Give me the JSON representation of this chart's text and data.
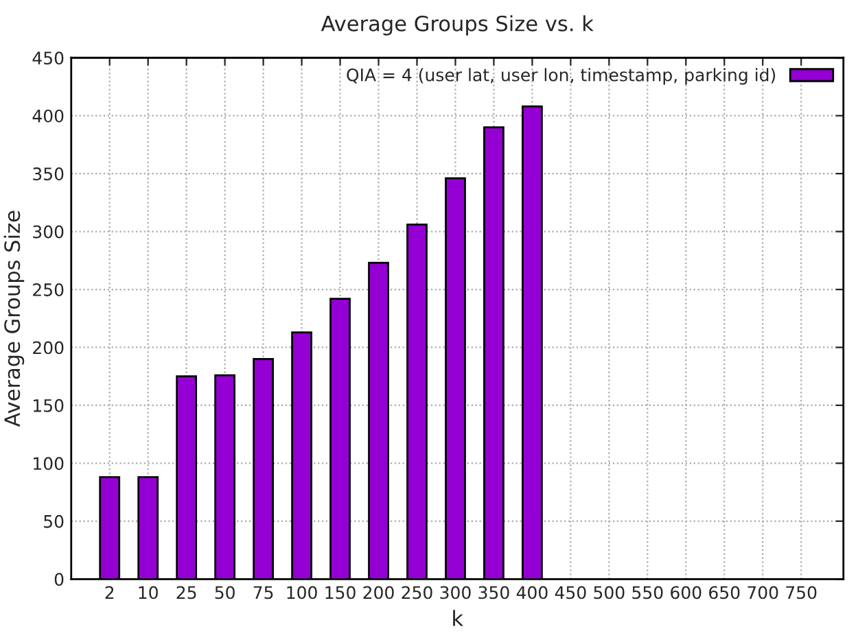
{
  "chart_data": {
    "type": "bar",
    "title": "Average Groups Size vs. k",
    "xlabel": "k",
    "ylabel": "Average Groups Size",
    "categories": [
      "2",
      "10",
      "25",
      "50",
      "75",
      "100",
      "150",
      "200",
      "250",
      "300",
      "350",
      "400",
      "450",
      "500",
      "550",
      "600",
      "650",
      "700",
      "750"
    ],
    "series": [
      {
        "name": "QIA = 4 (user lat, user lon, timestamp, parking id)",
        "color": "#9400d3",
        "values": [
          88,
          88,
          175,
          176,
          190,
          213,
          242,
          273,
          306,
          346,
          390,
          408,
          null,
          null,
          null,
          null,
          null,
          null,
          null
        ]
      }
    ],
    "ylim": [
      0,
      450
    ],
    "yticks": [
      0,
      50,
      100,
      150,
      200,
      250,
      300,
      350,
      400,
      450
    ],
    "grid": true,
    "legend": "top right"
  }
}
